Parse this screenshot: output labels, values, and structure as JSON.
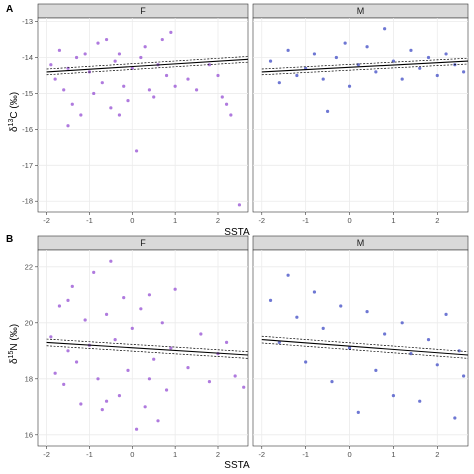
{
  "colors": {
    "female_points": "#9b59d6",
    "male_points": "#4a55c8",
    "strip_fill": "#d9d9d9",
    "panel_bg": "#ffffff",
    "grid": "#ebebeb",
    "trend": "#000000"
  },
  "chart_data": [
    {
      "type": "scatter",
      "tag": "A",
      "xlabel": "SSTA",
      "ylabel_pre": "δ",
      "ylabel_sup": "13",
      "ylabel_post": "C (‰)",
      "facets": [
        "F",
        "M"
      ],
      "xlim": [
        -2.2,
        2.7
      ],
      "ylim": [
        -18.3,
        -12.9
      ],
      "x_ticks": [
        "-2",
        "-1",
        "0",
        "1",
        "2"
      ],
      "y_ticks": [
        "-13",
        "-14",
        "-15",
        "-16",
        "-17",
        "-18"
      ],
      "grid": true,
      "series": [
        {
          "facet": "F",
          "trend": {
            "x": [
              -2.0,
              2.7
            ],
            "y": [
              -14.4,
              -14.05
            ],
            "ci": 0.08
          },
          "points": [
            [
              -1.9,
              -14.2
            ],
            [
              -1.8,
              -14.6
            ],
            [
              -1.7,
              -13.8
            ],
            [
              -1.6,
              -14.9
            ],
            [
              -1.5,
              -14.3
            ],
            [
              -1.4,
              -15.3
            ],
            [
              -1.3,
              -14.0
            ],
            [
              -1.2,
              -15.6
            ],
            [
              -1.1,
              -13.9
            ],
            [
              -1.0,
              -14.4
            ],
            [
              -0.9,
              -15.0
            ],
            [
              -0.8,
              -13.6
            ],
            [
              -0.7,
              -14.7
            ],
            [
              -0.6,
              -13.5
            ],
            [
              -0.5,
              -15.4
            ],
            [
              -0.4,
              -14.1
            ],
            [
              -0.3,
              -13.9
            ],
            [
              -0.2,
              -14.8
            ],
            [
              -0.1,
              -15.2
            ],
            [
              0.0,
              -14.3
            ],
            [
              0.1,
              -16.6
            ],
            [
              0.2,
              -14.0
            ],
            [
              0.3,
              -13.7
            ],
            [
              0.4,
              -14.9
            ],
            [
              0.5,
              -15.1
            ],
            [
              0.6,
              -14.2
            ],
            [
              0.7,
              -13.5
            ],
            [
              0.8,
              -14.5
            ],
            [
              0.9,
              -13.3
            ],
            [
              1.0,
              -14.8
            ],
            [
              1.3,
              -14.6
            ],
            [
              1.5,
              -14.9
            ],
            [
              1.8,
              -14.2
            ],
            [
              2.0,
              -14.5
            ],
            [
              2.1,
              -15.1
            ],
            [
              2.2,
              -15.3
            ],
            [
              2.3,
              -15.6
            ],
            [
              2.5,
              -18.1
            ],
            [
              -1.5,
              -15.9
            ],
            [
              -0.3,
              -15.6
            ]
          ]
        },
        {
          "facet": "M",
          "trend": {
            "x": [
              -2.0,
              2.7
            ],
            "y": [
              -14.4,
              -14.1
            ],
            "ci": 0.08
          },
          "points": [
            [
              -1.8,
              -14.1
            ],
            [
              -1.6,
              -14.7
            ],
            [
              -1.4,
              -13.8
            ],
            [
              -1.2,
              -14.5
            ],
            [
              -1.0,
              -14.3
            ],
            [
              -0.8,
              -13.9
            ],
            [
              -0.6,
              -14.6
            ],
            [
              -0.5,
              -15.5
            ],
            [
              -0.3,
              -14.0
            ],
            [
              -0.1,
              -13.6
            ],
            [
              0.0,
              -14.8
            ],
            [
              0.2,
              -14.2
            ],
            [
              0.4,
              -13.7
            ],
            [
              0.6,
              -14.4
            ],
            [
              0.8,
              -13.2
            ],
            [
              1.0,
              -14.1
            ],
            [
              1.2,
              -14.6
            ],
            [
              1.4,
              -13.8
            ],
            [
              1.6,
              -14.3
            ],
            [
              1.8,
              -14.0
            ],
            [
              2.0,
              -14.5
            ],
            [
              2.2,
              -13.9
            ],
            [
              2.4,
              -14.2
            ],
            [
              2.6,
              -14.4
            ]
          ]
        }
      ]
    },
    {
      "type": "scatter",
      "tag": "B",
      "xlabel": "SSTA",
      "ylabel_pre": "δ",
      "ylabel_sup": "15",
      "ylabel_post": "N (‰)",
      "facets": [
        "F",
        "M"
      ],
      "xlim": [
        -2.2,
        2.7
      ],
      "ylim": [
        15.6,
        22.6
      ],
      "x_ticks": [
        "-2",
        "-1",
        "0",
        "1",
        "2"
      ],
      "y_ticks": [
        "16",
        "18",
        "20",
        "22"
      ],
      "grid": true,
      "series": [
        {
          "facet": "F",
          "trend": {
            "x": [
              -2.0,
              2.7
            ],
            "y": [
              19.3,
              18.85
            ],
            "ci": 0.12
          },
          "points": [
            [
              -1.9,
              19.5
            ],
            [
              -1.8,
              18.2
            ],
            [
              -1.7,
              20.6
            ],
            [
              -1.6,
              17.8
            ],
            [
              -1.5,
              19.0
            ],
            [
              -1.4,
              21.3
            ],
            [
              -1.3,
              18.6
            ],
            [
              -1.2,
              17.1
            ],
            [
              -1.1,
              20.1
            ],
            [
              -1.0,
              19.2
            ],
            [
              -0.9,
              21.8
            ],
            [
              -0.8,
              18.0
            ],
            [
              -0.7,
              16.9
            ],
            [
              -0.6,
              20.3
            ],
            [
              -0.5,
              22.2
            ],
            [
              -0.4,
              19.4
            ],
            [
              -0.3,
              17.4
            ],
            [
              -0.2,
              20.9
            ],
            [
              -0.1,
              18.3
            ],
            [
              0.0,
              19.8
            ],
            [
              0.1,
              16.2
            ],
            [
              0.2,
              20.5
            ],
            [
              0.3,
              17.0
            ],
            [
              0.4,
              21.0
            ],
            [
              0.5,
              18.7
            ],
            [
              0.6,
              16.5
            ],
            [
              0.7,
              20.0
            ],
            [
              0.8,
              17.6
            ],
            [
              0.9,
              19.1
            ],
            [
              1.0,
              21.2
            ],
            [
              1.3,
              18.4
            ],
            [
              1.6,
              19.6
            ],
            [
              1.8,
              17.9
            ],
            [
              2.0,
              18.9
            ],
            [
              2.2,
              19.3
            ],
            [
              2.4,
              18.1
            ],
            [
              2.6,
              17.7
            ],
            [
              -1.5,
              20.8
            ],
            [
              -0.6,
              17.2
            ],
            [
              0.4,
              18.0
            ]
          ]
        },
        {
          "facet": "M",
          "trend": {
            "x": [
              -2.0,
              2.7
            ],
            "y": [
              19.4,
              18.85
            ],
            "ci": 0.12
          },
          "points": [
            [
              -1.8,
              20.8
            ],
            [
              -1.6,
              19.3
            ],
            [
              -1.4,
              21.7
            ],
            [
              -1.2,
              20.2
            ],
            [
              -1.0,
              18.6
            ],
            [
              -0.8,
              21.1
            ],
            [
              -0.6,
              19.8
            ],
            [
              -0.4,
              17.9
            ],
            [
              -0.2,
              20.6
            ],
            [
              0.0,
              19.1
            ],
            [
              0.2,
              16.8
            ],
            [
              0.4,
              20.4
            ],
            [
              0.6,
              18.3
            ],
            [
              0.8,
              19.6
            ],
            [
              1.0,
              17.4
            ],
            [
              1.2,
              20.0
            ],
            [
              1.4,
              18.9
            ],
            [
              1.6,
              17.2
            ],
            [
              1.8,
              19.4
            ],
            [
              2.0,
              18.5
            ],
            [
              2.2,
              20.3
            ],
            [
              2.4,
              16.6
            ],
            [
              2.5,
              19.0
            ],
            [
              2.6,
              18.1
            ]
          ]
        }
      ]
    }
  ]
}
